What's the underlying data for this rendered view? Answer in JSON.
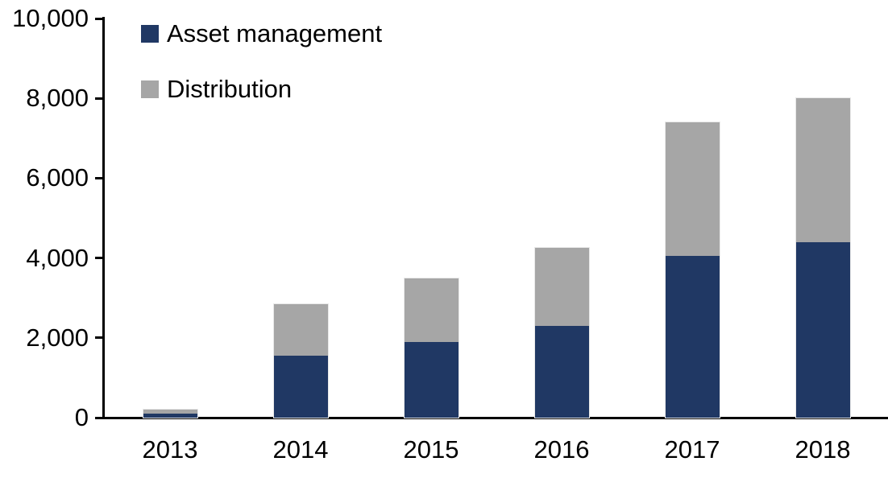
{
  "chart_data": {
    "type": "bar",
    "stacked": true,
    "title": "",
    "xlabel": "",
    "ylabel": "",
    "categories": [
      "2013",
      "2014",
      "2015",
      "2016",
      "2017",
      "2018"
    ],
    "series": [
      {
        "name": "Asset management",
        "color": "#203864",
        "values": [
          100,
          1550,
          1900,
          2300,
          4050,
          4400
        ]
      },
      {
        "name": "Distribution",
        "color": "#A6A6A6",
        "values": [
          100,
          1300,
          1600,
          1950,
          3350,
          3600
        ]
      }
    ],
    "totals": [
      200,
      2850,
      3500,
      4250,
      7400,
      8000
    ],
    "ylim": [
      0,
      10000
    ],
    "yticks": [
      0,
      2000,
      4000,
      6000,
      8000,
      10000
    ],
    "ytick_labels": [
      "0",
      "2,000",
      "4,000",
      "6,000",
      "8,000",
      "10,000"
    ],
    "grid": "off",
    "legend_position": "top-left-inside",
    "axis_color": "#000000",
    "text_color": "#000000"
  }
}
